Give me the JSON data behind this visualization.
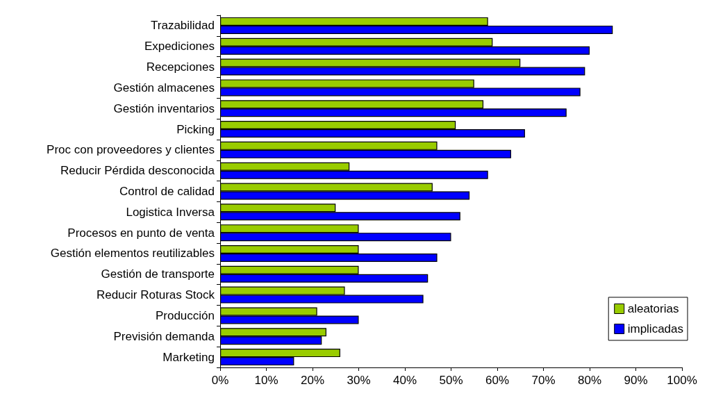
{
  "chart_data": {
    "type": "bar",
    "orientation": "horizontal",
    "categories": [
      "Trazabilidad",
      "Expediciones",
      "Recepciones",
      "Gestión almacenes",
      "Gestión inventarios",
      "Picking",
      "Proc con proveedores y clientes",
      "Reducir Pérdida desconocida",
      "Control de calidad",
      "Logistica Inversa",
      "Procesos en punto de venta",
      "Gestión elementos reutilizables",
      "Gestión de transporte",
      "Reducir Roturas Stock",
      "Producción",
      "Previsión demanda",
      "Marketing"
    ],
    "series": [
      {
        "name": "aleatorias",
        "color": "#99cc00",
        "values": [
          58,
          59,
          65,
          55,
          57,
          51,
          47,
          28,
          46,
          25,
          30,
          30,
          30,
          27,
          21,
          23,
          26
        ]
      },
      {
        "name": "implicadas",
        "color": "#0000ff",
        "values": [
          85,
          80,
          79,
          78,
          75,
          66,
          63,
          58,
          54,
          52,
          50,
          47,
          45,
          44,
          30,
          22,
          16
        ]
      }
    ],
    "xlim": [
      0,
      100
    ],
    "xticks": [
      {
        "value": 0,
        "label": "0%"
      },
      {
        "value": 10,
        "label": "10%"
      },
      {
        "value": 20,
        "label": "20%"
      },
      {
        "value": 30,
        "label": "30%"
      },
      {
        "value": 40,
        "label": "40%"
      },
      {
        "value": 50,
        "label": "50%"
      },
      {
        "value": 60,
        "label": "60%"
      },
      {
        "value": 70,
        "label": "70%"
      },
      {
        "value": 80,
        "label": "80%"
      },
      {
        "value": 90,
        "label": "90%"
      },
      {
        "value": 100,
        "label": "100%"
      }
    ],
    "grid": false,
    "legend": "bottom right"
  }
}
